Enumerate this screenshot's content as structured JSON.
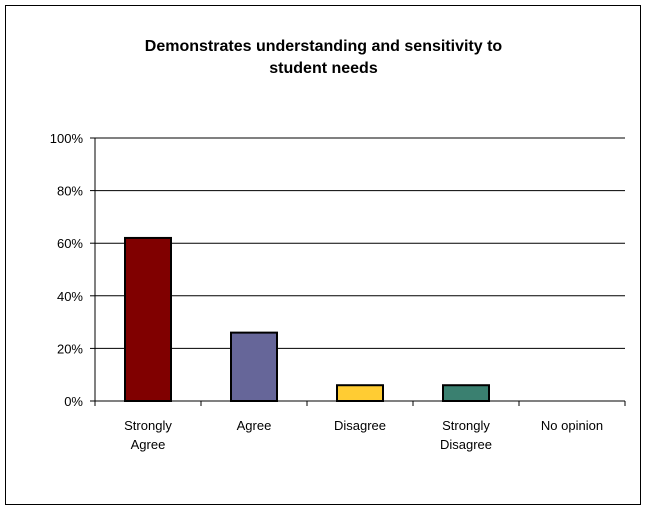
{
  "chart_data": {
    "type": "bar",
    "title_lines": [
      "Demonstrates understanding and sensitivity to",
      "student needs"
    ],
    "categories": [
      [
        "Strongly",
        "Agree"
      ],
      [
        "Agree"
      ],
      [
        "Disagree"
      ],
      [
        "Strongly",
        "Disagree"
      ],
      [
        "No opinion"
      ]
    ],
    "values": [
      62,
      26,
      6,
      6,
      0
    ],
    "colors": [
      "#800000",
      "#666699",
      "#FFCC33",
      "#3A8070",
      "#999999"
    ],
    "ylim": [
      0,
      100
    ],
    "yticks": [
      "0%",
      "20%",
      "40%",
      "60%",
      "80%",
      "100%"
    ],
    "grid": true,
    "legend": "none"
  }
}
